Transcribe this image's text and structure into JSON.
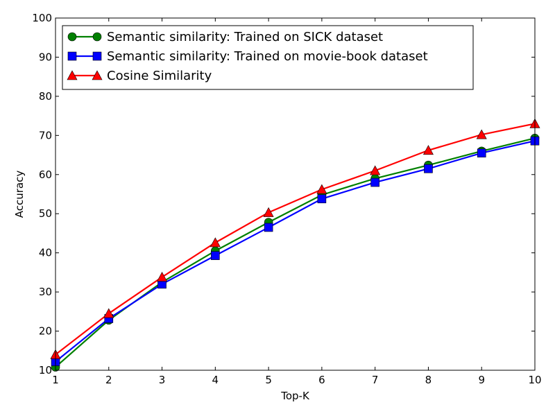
{
  "chart_data": {
    "type": "line",
    "title": "",
    "xlabel": "Top-K",
    "ylabel": "Accuracy",
    "x": [
      1,
      2,
      3,
      4,
      5,
      6,
      7,
      8,
      9,
      10
    ],
    "xlim": [
      1,
      10
    ],
    "ylim": [
      10,
      100
    ],
    "xticks": [
      1,
      2,
      3,
      4,
      5,
      6,
      7,
      8,
      9,
      10
    ],
    "yticks": [
      10,
      20,
      30,
      40,
      50,
      60,
      70,
      80,
      90,
      100
    ],
    "grid": false,
    "legend_position": "top-left",
    "series": [
      {
        "name": "Semantic similarity: Trained on SICK dataset",
        "color": "#008000",
        "marker": "circle",
        "values": [
          10.8,
          22.8,
          32.5,
          40.5,
          47.8,
          54.8,
          59.0,
          62.4,
          66.0,
          69.3
        ]
      },
      {
        "name": "Semantic similarity: Trained on movie-book dataset",
        "color": "#0000ff",
        "marker": "square",
        "values": [
          12.2,
          23.2,
          32.0,
          39.3,
          46.5,
          53.8,
          58.0,
          61.5,
          65.5,
          68.6
        ]
      },
      {
        "name": "Cosine Similarity",
        "color": "#ff0000",
        "marker": "triangle",
        "values": [
          14.0,
          24.5,
          33.8,
          42.6,
          50.3,
          56.2,
          61.0,
          66.2,
          70.2,
          73.0
        ]
      }
    ]
  }
}
